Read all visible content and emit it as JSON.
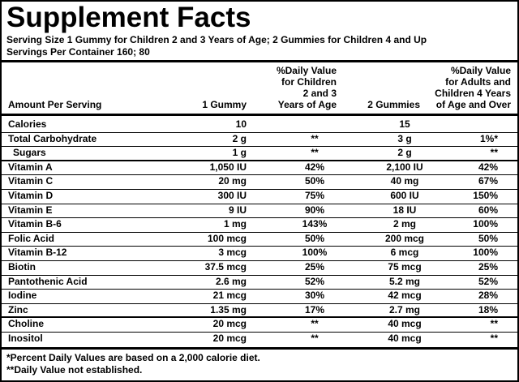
{
  "title": "Supplement Facts",
  "serving": [
    "Serving Size 1 Gummy for Children 2 and 3 Years of Age; 2 Gummies for Children 4 and Up",
    "Servings Per Container 160; 80"
  ],
  "table": {
    "header": [
      [
        "Amount Per Serving"
      ],
      [
        "1 Gummy"
      ],
      [
        "%Daily Value",
        "for Children",
        "2 and 3",
        "Years of Age"
      ],
      [
        "2 Gummies"
      ],
      [
        "%Daily Value",
        "for Adults and",
        "Children 4 Years",
        "of Age and Over"
      ]
    ],
    "rows": [
      [
        "Calories",
        "10",
        "",
        "15",
        ""
      ],
      [
        "Total Carbohydrate",
        "2 g",
        "**",
        "3 g",
        "1%*"
      ],
      [
        "Sugars",
        "1 g",
        "**",
        "2 g",
        "**"
      ],
      [
        "Vitamin A",
        "1,050 IU",
        "42%",
        "2,100 IU",
        "42%"
      ],
      [
        "Vitamin C",
        "20 mg",
        "50%",
        "40 mg",
        "67%"
      ],
      [
        "Vitamin D",
        "300 IU",
        "75%",
        "600 IU",
        "150%"
      ],
      [
        "Vitamin E",
        "9 IU",
        "90%",
        "18 IU",
        "60%"
      ],
      [
        "Vitamin B-6",
        "1 mg",
        "143%",
        "2 mg",
        "100%"
      ],
      [
        "Folic Acid",
        "100 mcg",
        "50%",
        "200 mcg",
        "50%"
      ],
      [
        "Vitamin B-12",
        "3 mcg",
        "100%",
        "6 mcg",
        "100%"
      ],
      [
        "Biotin",
        "37.5 mcg",
        "25%",
        "75 mcg",
        "25%"
      ],
      [
        "Pantothenic Acid",
        "2.6 mg",
        "52%",
        "5.2 mg",
        "52%"
      ],
      [
        "Iodine",
        "21 mcg",
        "30%",
        "42 mcg",
        "28%"
      ],
      [
        "Zinc",
        "1.35 mg",
        "17%",
        "2.7 mg",
        "18%"
      ],
      [
        "Choline",
        "20 mcg",
        "**",
        "40 mcg",
        "**"
      ],
      [
        "Inositol",
        "20 mcg",
        "**",
        "40 mcg",
        "**"
      ]
    ]
  },
  "footnotes": [
    "*Percent Daily Values are based on a 2,000 calorie diet.",
    "**Daily Value not established."
  ]
}
